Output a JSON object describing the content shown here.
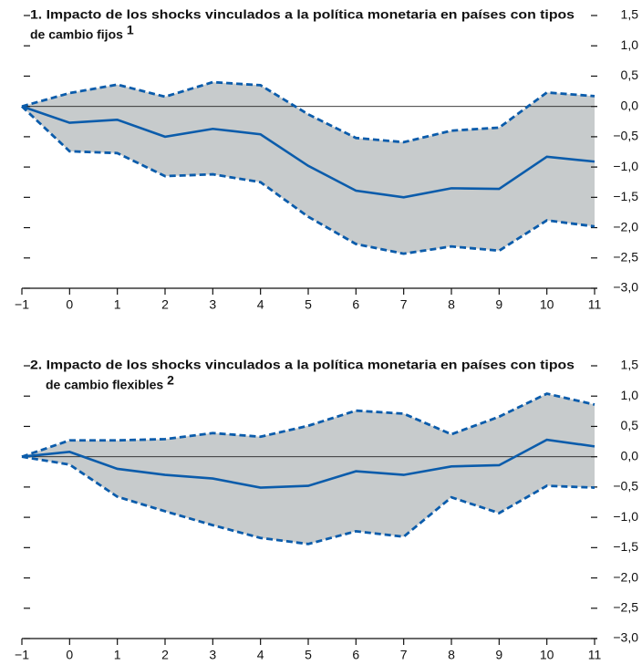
{
  "chart_data": [
    {
      "type": "line",
      "title_lines": [
        "1. Impacto de los shocks vinculados a la política monetaria en países con tipos",
        "de cambio fijos"
      ],
      "title_note": "1",
      "x": [
        -1,
        0,
        1,
        2,
        3,
        4,
        5,
        6,
        7,
        8,
        9,
        10,
        11
      ],
      "series": [
        {
          "role": "central",
          "color": "#0b5cab",
          "values": [
            0,
            -0.27,
            -0.22,
            -0.5,
            -0.37,
            -0.46,
            -0.98,
            -1.39,
            -1.5,
            -1.35,
            -1.36,
            -0.83,
            -0.91
          ]
        },
        {
          "role": "upper",
          "color": "#0b5cab",
          "values": [
            0,
            0.22,
            0.36,
            0.16,
            0.4,
            0.35,
            -0.13,
            -0.52,
            -0.59,
            -0.4,
            -0.35,
            0.23,
            0.17
          ]
        },
        {
          "role": "lower",
          "color": "#0b5cab",
          "values": [
            0,
            -0.74,
            -0.77,
            -1.15,
            -1.12,
            -1.25,
            -1.82,
            -2.27,
            -2.43,
            -2.31,
            -2.38,
            -1.88,
            -1.98
          ]
        }
      ],
      "band_color": "#c7cbcc",
      "xlim": [
        -1,
        11
      ],
      "xticks": [
        {
          "value": -1,
          "label": "−1"
        },
        0,
        1,
        2,
        3,
        4,
        5,
        6,
        7,
        8,
        9,
        10,
        11
      ],
      "ylim": [
        -3,
        1.5
      ],
      "yticks": [
        {
          "value": 1.5,
          "label": "1,5"
        },
        {
          "value": 1,
          "label": "1,0"
        },
        {
          "value": 0.5,
          "label": "0,5"
        },
        {
          "value": 0,
          "label": "0,0"
        },
        {
          "value": -0.5,
          "label": "−0,5"
        },
        {
          "value": -1,
          "label": "−1,0"
        },
        {
          "value": -1.5,
          "label": "−1,5"
        },
        {
          "value": -2,
          "label": "−2,0"
        },
        {
          "value": -2.5,
          "label": "−2,5"
        },
        {
          "value": -3,
          "label": "−3,0"
        }
      ]
    },
    {
      "type": "line",
      "title_lines": [
        "2. Impacto de los shocks vinculados a la política monetaria en países con tipos",
        "de cambio flexibles"
      ],
      "title_note": "2",
      "x": [
        -1,
        0,
        1,
        2,
        3,
        4,
        5,
        6,
        7,
        8,
        9,
        10,
        11
      ],
      "series": [
        {
          "role": "central",
          "color": "#0b5cab",
          "values": [
            0,
            0.08,
            -0.2,
            -0.3,
            -0.36,
            -0.51,
            -0.48,
            -0.24,
            -0.3,
            -0.16,
            -0.14,
            0.28,
            0.17
          ]
        },
        {
          "role": "upper",
          "color": "#0b5cab",
          "values": [
            0,
            0.27,
            0.27,
            0.29,
            0.39,
            0.33,
            0.51,
            0.76,
            0.71,
            0.37,
            0.66,
            1.04,
            0.86
          ]
        },
        {
          "role": "lower",
          "color": "#0b5cab",
          "values": [
            0,
            -0.13,
            -0.66,
            -0.9,
            -1.13,
            -1.34,
            -1.44,
            -1.23,
            -1.32,
            -0.67,
            -0.93,
            -0.48,
            -0.51
          ]
        }
      ],
      "band_color": "#c7cbcc",
      "xlim": [
        -1,
        11
      ],
      "xticks": [
        {
          "value": -1,
          "label": "−1"
        },
        0,
        1,
        2,
        3,
        4,
        5,
        6,
        7,
        8,
        9,
        10,
        11
      ],
      "ylim": [
        -3,
        1.5
      ],
      "yticks": [
        {
          "value": 1.5,
          "label": "1,5"
        },
        {
          "value": 1,
          "label": "1,0"
        },
        {
          "value": 0.5,
          "label": "0,5"
        },
        {
          "value": 0,
          "label": "0,0"
        },
        {
          "value": -0.5,
          "label": "−0,5"
        },
        {
          "value": -1,
          "label": "−1,0"
        },
        {
          "value": -1.5,
          "label": "−1,5"
        },
        {
          "value": -2,
          "label": "−2,0"
        },
        {
          "value": -2.5,
          "label": "−2,5"
        },
        {
          "value": -3,
          "label": "−3,0"
        }
      ]
    }
  ]
}
